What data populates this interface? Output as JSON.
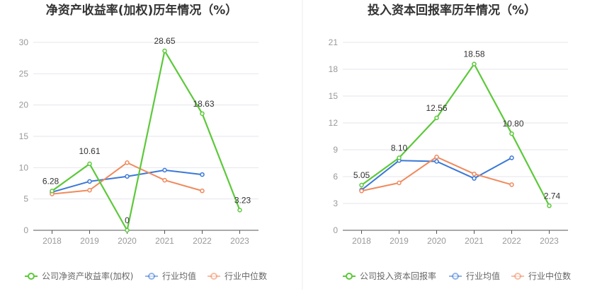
{
  "chart_data": [
    {
      "type": "line",
      "title": "净资产收益率(加权)历年情况（%）",
      "categories": [
        "2018",
        "2019",
        "2020",
        "2021",
        "2022",
        "2023"
      ],
      "y_ticks": [
        "0",
        "5",
        "10",
        "15",
        "20",
        "25",
        "30"
      ],
      "ylim": [
        0,
        30
      ],
      "grid": true,
      "legend_position": "bottom-left",
      "series": [
        {
          "name": "公司净资产收益率(加权)",
          "color": "#5cc93a",
          "values": [
            6.28,
            10.61,
            0,
            28.65,
            18.63,
            3.23
          ],
          "labels": [
            "6.28",
            "10.61",
            "0",
            "28.65",
            "18.63",
            "3.23"
          ]
        },
        {
          "name": "行业均值",
          "color": "#3a78d6",
          "values": [
            6.1,
            7.8,
            8.6,
            9.6,
            8.9,
            null
          ]
        },
        {
          "name": "行业中位数",
          "color": "#f08a5d",
          "values": [
            5.8,
            6.4,
            10.8,
            8.0,
            6.3,
            null
          ]
        }
      ]
    },
    {
      "type": "line",
      "title": "投入资本回报率历年情况（%）",
      "categories": [
        "2018",
        "2019",
        "2020",
        "2021",
        "2022",
        "2023"
      ],
      "y_ticks": [
        "0",
        "3",
        "6",
        "9",
        "12",
        "15",
        "18",
        "21"
      ],
      "ylim": [
        0,
        21
      ],
      "grid": true,
      "legend_position": "bottom-left",
      "series": [
        {
          "name": "公司投入资本回报率",
          "color": "#5cc93a",
          "values": [
            5.05,
            8.1,
            12.56,
            18.58,
            10.8,
            2.74
          ],
          "labels": [
            "5.05",
            "8.10",
            "12.56",
            "18.58",
            "10.80",
            "2.74"
          ]
        },
        {
          "name": "行业均值",
          "color": "#3a78d6",
          "values": [
            4.5,
            7.8,
            7.7,
            5.8,
            8.1,
            null
          ]
        },
        {
          "name": "行业中位数",
          "color": "#f08a5d",
          "values": [
            4.4,
            5.3,
            8.2,
            6.3,
            5.1,
            null
          ]
        }
      ]
    }
  ]
}
